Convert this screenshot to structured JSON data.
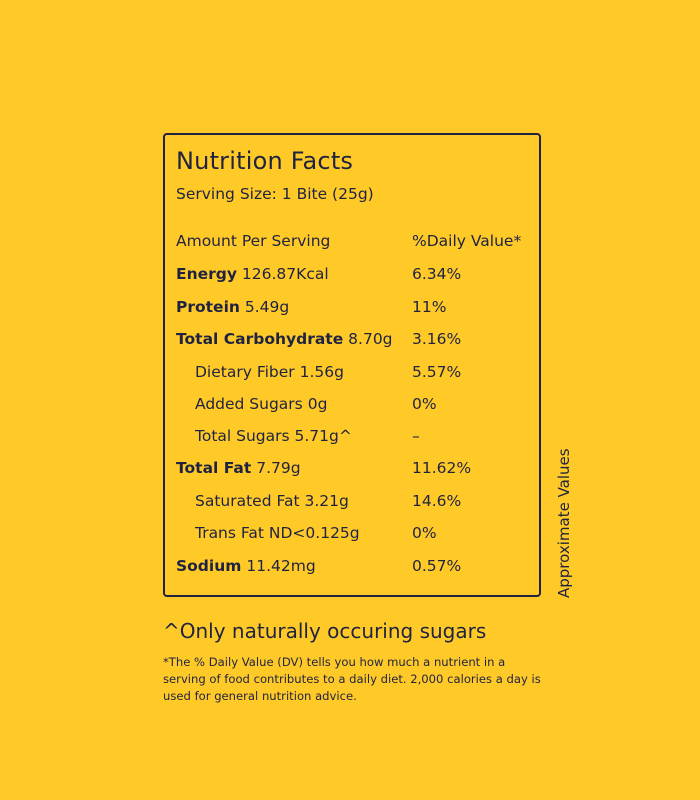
{
  "label": {
    "title": "Nutrition Facts",
    "serving_size": "Serving Size: 1 Bite (25g)",
    "header_left": "Amount Per Serving",
    "header_right": "%Daily Value*",
    "rows": [
      {
        "name": "Energy",
        "amount": "126.87Kcal",
        "dv": "6.34%",
        "bold": true,
        "indent": false
      },
      {
        "name": "Protein",
        "amount": "5.49g",
        "dv": "11%",
        "bold": true,
        "indent": false
      },
      {
        "name": "Total Carbohydrate",
        "amount": "8.70g",
        "dv": "3.16%",
        "bold": true,
        "indent": false
      },
      {
        "name": "Dietary Fiber",
        "amount": "1.56g",
        "dv": "5.57%",
        "bold": false,
        "indent": true
      },
      {
        "name": "Added Sugars",
        "amount": "0g",
        "dv": "0%",
        "bold": false,
        "indent": true
      },
      {
        "name": "Total Sugars",
        "amount": "5.71g^",
        "dv": "–",
        "bold": false,
        "indent": true
      },
      {
        "name": "Total Fat",
        "amount": "7.79g",
        "dv": "11.62%",
        "bold": true,
        "indent": false
      },
      {
        "name": "Saturated Fat",
        "amount": "3.21g",
        "dv": "14.6%",
        "bold": false,
        "indent": true
      },
      {
        "name": "Trans Fat",
        "amount": "ND<0.125g",
        "dv": "0%",
        "bold": false,
        "indent": true
      },
      {
        "name": "Sodium",
        "amount": "11.42mg",
        "dv": "0.57%",
        "bold": true,
        "indent": false
      }
    ]
  },
  "side_note": "Approximate Values",
  "footnote": "^Only naturally occuring sugars",
  "disclaimer": "*The % Daily Value (DV) tells you how much a nutrient in a serving of food contributes to a daily diet. 2,000 calories a day is used for general nutrition advice.",
  "colors": {
    "background": "#FFC928",
    "text": "#1F2340"
  }
}
